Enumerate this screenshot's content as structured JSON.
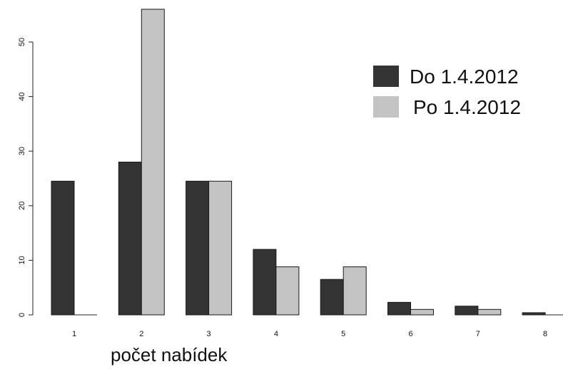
{
  "chart_data": {
    "type": "bar",
    "title": "",
    "xlabel": "počet nabídek",
    "ylabel": "",
    "categories": [
      "1",
      "2",
      "3",
      "4",
      "5",
      "6",
      "7",
      "8"
    ],
    "series": [
      {
        "name": "Do 1.4.2012",
        "color": "#333333",
        "values": [
          24.5,
          28,
          24.5,
          12,
          6.5,
          2.3,
          1.6,
          0.4
        ]
      },
      {
        "name": "Po 1.4.2012",
        "color": "#c3c3c3",
        "values": [
          0,
          56,
          24.5,
          8.8,
          8.8,
          1,
          1,
          0
        ]
      }
    ],
    "yticks": [
      "0",
      "10",
      "20",
      "30",
      "40",
      "50"
    ],
    "ylim": [
      0,
      56
    ],
    "legend_position": "top-right",
    "grid": false
  }
}
